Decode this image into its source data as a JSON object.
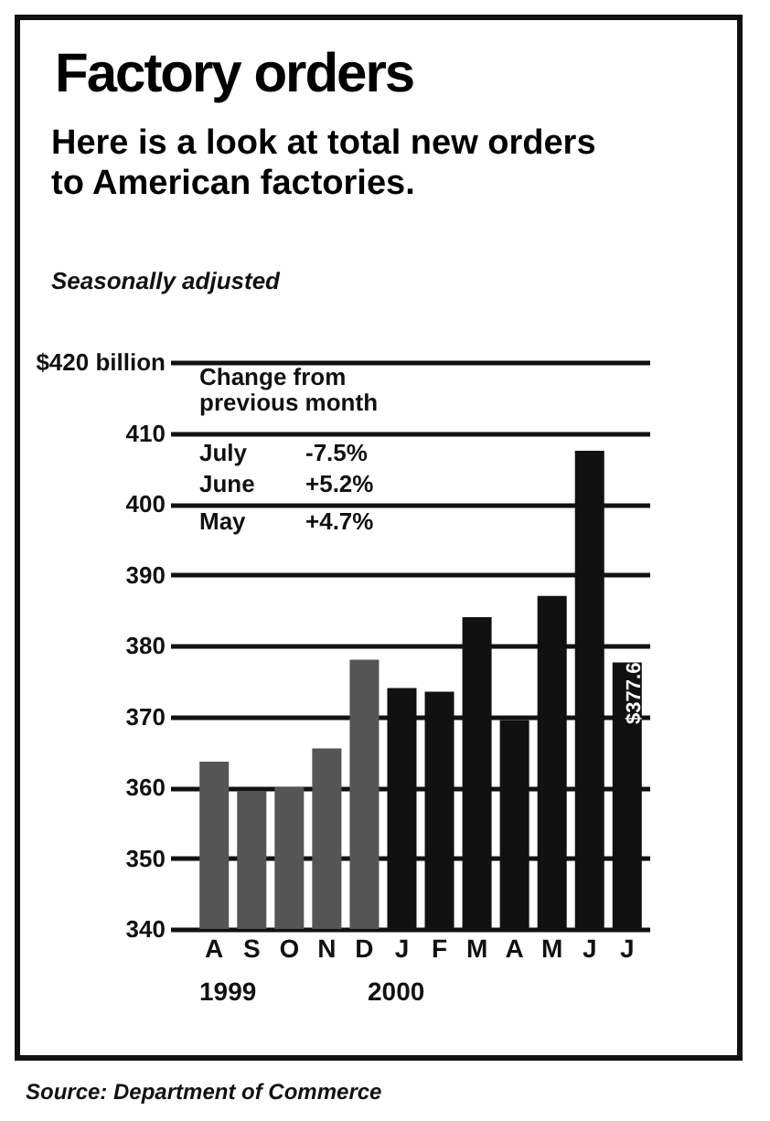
{
  "chart_data": {
    "type": "bar",
    "title": "Factory orders",
    "subtitle": "Here is a look at total new orders to American factories.",
    "categories": [
      "A",
      "S",
      "O",
      "N",
      "D",
      "J",
      "F",
      "M",
      "A",
      "M",
      "J",
      "J"
    ],
    "values": [
      363.6,
      359.5,
      360,
      365.5,
      378,
      374,
      373.5,
      384,
      369.5,
      387,
      407.5,
      377.6
    ],
    "colors": [
      "#555555",
      "#555555",
      "#555555",
      "#555555",
      "#555555",
      "#111111",
      "#111111",
      "#111111",
      "#111111",
      "#111111",
      "#111111",
      "#111111"
    ],
    "value_labels": [
      null,
      null,
      null,
      null,
      null,
      null,
      null,
      null,
      null,
      null,
      null,
      "$377.6"
    ],
    "ylim": [
      340,
      420
    ],
    "yticks": [
      340,
      350,
      360,
      370,
      380,
      390,
      400,
      410,
      {
        "value": 420,
        "label": "$420 billion"
      }
    ],
    "grid": "y",
    "annotations": [
      "Seasonally adjusted",
      "Change from previous month",
      "July",
      "-7.5%",
      "June",
      "+5.2%",
      "May",
      "+4.7%",
      "1999",
      "2000",
      "Source: Department of Commerce"
    ]
  }
}
